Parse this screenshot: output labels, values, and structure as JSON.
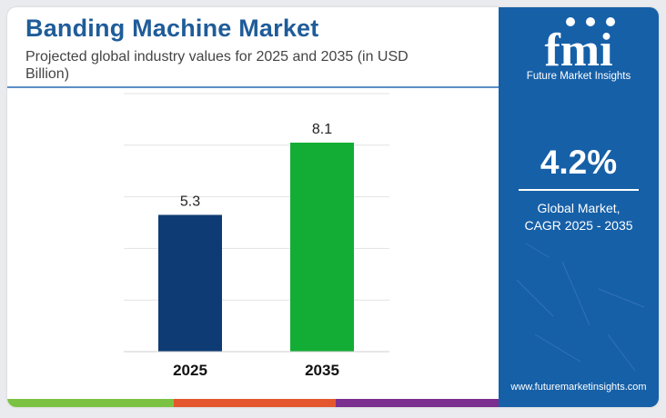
{
  "header": {
    "title": "Banding Machine Market",
    "subtitle": "Projected global industry values for 2025 and 2035 (in USD Billion)"
  },
  "chart_data": {
    "type": "bar",
    "categories": [
      "2025",
      "2035"
    ],
    "values": [
      5.3,
      8.1
    ],
    "data_labels": [
      "5.3",
      "8.1"
    ],
    "bar_colors": [
      "#0e3b73",
      "#13ad36"
    ],
    "ylim": [
      0,
      10
    ],
    "grid": true,
    "legend": "none",
    "xlabel": "",
    "ylabel": ""
  },
  "sidebar": {
    "brand": "fmi",
    "brand_tagline": "Future Market Insights",
    "cagr_value": "4.2%",
    "cagr_label_line1": "Global Market,",
    "cagr_label_line2": "CAGR 2025 - 2035",
    "website": "www.futuremarketinsights.com"
  },
  "colors": {
    "title": "#1f5c99",
    "panel": "#1660a8",
    "footer_stripes": [
      "#7cc242",
      "#e4572e",
      "#7b2f8e"
    ]
  }
}
